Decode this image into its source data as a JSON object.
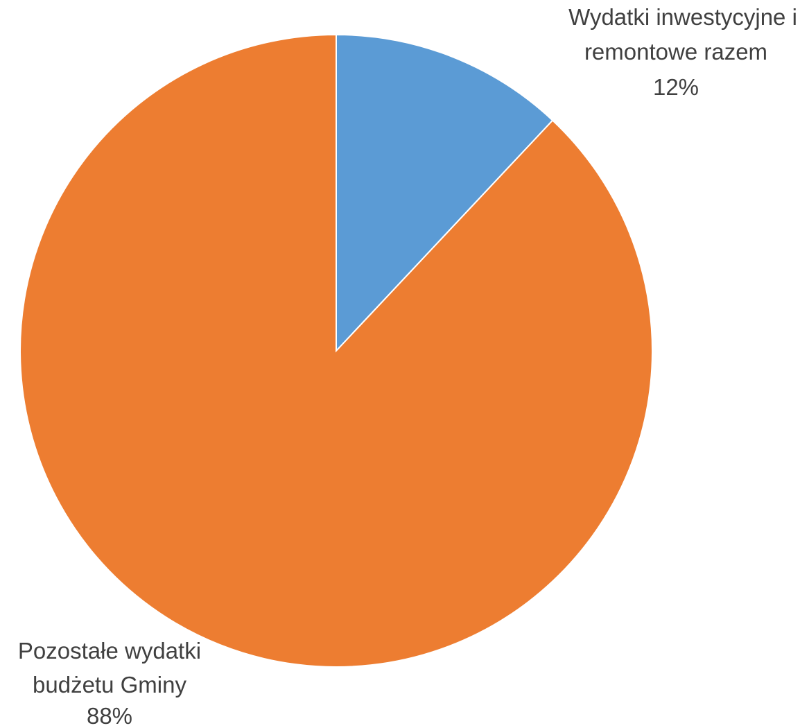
{
  "chart_data": {
    "type": "pie",
    "slices": [
      {
        "label_lines": [
          "Wydatki inwestycyjne i",
          "remontowe razem"
        ],
        "value": 12,
        "percent_label": "12%",
        "color": "#5b9bd5"
      },
      {
        "label_lines": [
          "Pozostałe wydatki",
          "budżetu Gminy"
        ],
        "value": 88,
        "percent_label": "88%",
        "color": "#ed7d31"
      }
    ],
    "start_angle": "12 o'clock",
    "direction": "clockwise",
    "legend": "none"
  }
}
